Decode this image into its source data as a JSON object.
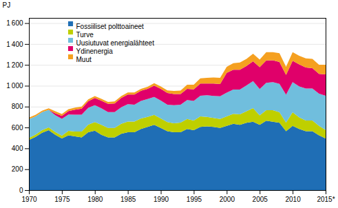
{
  "chart_data": {
    "type": "area",
    "stacked": true,
    "ylabel": "PJ",
    "x": [
      1970,
      1971,
      1972,
      1973,
      1974,
      1975,
      1976,
      1977,
      1978,
      1979,
      1980,
      1981,
      1982,
      1983,
      1984,
      1985,
      1986,
      1987,
      1988,
      1989,
      1990,
      1991,
      1992,
      1993,
      1994,
      1995,
      1996,
      1997,
      1998,
      1999,
      2000,
      2001,
      2002,
      2003,
      2004,
      2005,
      2006,
      2007,
      2008,
      2009,
      2010,
      2011,
      2012,
      2013,
      2014,
      2015
    ],
    "series": [
      {
        "name": "Fossiiliset polttoaineet",
        "color": "#1f6eb5",
        "values": [
          480,
          510,
          550,
          575,
          530,
          495,
          525,
          515,
          505,
          555,
          570,
          530,
          505,
          505,
          540,
          555,
          555,
          585,
          605,
          625,
          595,
          565,
          555,
          555,
          585,
          575,
          605,
          610,
          605,
          595,
          615,
          635,
          625,
          645,
          655,
          625,
          665,
          655,
          645,
          565,
          615,
          585,
          565,
          565,
          525,
          495
        ]
      },
      {
        "name": "Turve",
        "color": "#bfcf00",
        "values": [
          20,
          22,
          25,
          26,
          26,
          26,
          42,
          46,
          56,
          72,
          82,
          96,
          91,
          91,
          96,
          101,
          101,
          101,
          96,
          96,
          91,
          86,
          86,
          91,
          96,
          91,
          101,
          91,
          86,
          86,
          91,
          96,
          101,
          111,
          131,
          91,
          101,
          111,
          101,
          81,
          131,
          111,
          101,
          101,
          91,
          81
        ]
      },
      {
        "name": "Uusiutuvat energialähteet",
        "color": "#70bedd",
        "values": [
          180,
          175,
          172,
          168,
          162,
          162,
          158,
          162,
          162,
          162,
          162,
          158,
          152,
          152,
          158,
          168,
          162,
          168,
          172,
          172,
          172,
          168,
          172,
          172,
          182,
          188,
          198,
          208,
          212,
          218,
          228,
          232,
          238,
          248,
          258,
          252,
          262,
          268,
          272,
          268,
          288,
          298,
          308,
          308,
          308,
          328
        ]
      },
      {
        "name": "Ydinenergia",
        "color": "#e0006a",
        "values": [
          0,
          0,
          0,
          0,
          18,
          28,
          32,
          48,
          58,
          62,
          68,
          72,
          78,
          82,
          88,
          92,
          98,
          98,
          98,
          108,
          112,
          112,
          108,
          102,
          108,
          112,
          118,
          112,
          118,
          118,
          190,
          190,
          190,
          185,
          190,
          210,
          215,
          210,
          210,
          190,
          205,
          210,
          200,
          195,
          190,
          205
        ]
      },
      {
        "name": "Muut",
        "color": "#f5a020",
        "values": [
          14,
          14,
          14,
          14,
          19,
          19,
          19,
          19,
          19,
          19,
          19,
          19,
          19,
          19,
          19,
          19,
          19,
          19,
          19,
          24,
          24,
          24,
          29,
          34,
          39,
          44,
          49,
          54,
          58,
          58,
          58,
          63,
          68,
          68,
          73,
          73,
          78,
          78,
          83,
          78,
          83,
          83,
          88,
          88,
          88,
          93
        ]
      }
    ],
    "xlim": [
      1970,
      2015
    ],
    "xticks": [
      1970,
      1975,
      1980,
      1985,
      1990,
      1995,
      2000,
      2005,
      2010,
      {
        "value": 2015,
        "label": "2015*"
      }
    ],
    "ylim": [
      0,
      1650
    ],
    "yticks": [
      0,
      200,
      400,
      600,
      800,
      {
        "value": 1000,
        "label": "1 000"
      },
      {
        "value": 1200,
        "label": "1 200"
      },
      {
        "value": 1400,
        "label": "1 400"
      },
      {
        "value": 1600,
        "label": "1 600"
      }
    ],
    "grid": true,
    "legend": "upper left"
  }
}
